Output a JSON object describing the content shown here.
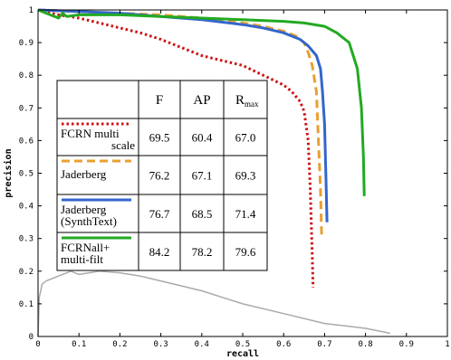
{
  "chart_data": {
    "type": "line",
    "xlabel": "recall",
    "ylabel": "precision",
    "xlim": [
      0,
      1
    ],
    "ylim": [
      0,
      1
    ],
    "xticks": [
      "0",
      "0.1",
      "0.2",
      "0.3",
      "0.4",
      "0.5",
      "0.6",
      "0.7",
      "0.8",
      "0.9",
      "1"
    ],
    "yticks": [
      "0",
      "0.1",
      "0.2",
      "0.3",
      "0.4",
      "0.5",
      "0.6",
      "0.7",
      "0.8",
      "0.9",
      "1"
    ],
    "grid": false,
    "series": [
      {
        "name": "FCRN multi scale",
        "color": "#cc1111",
        "dash": "dotted",
        "x": [
          0.0,
          0.05,
          0.1,
          0.15,
          0.2,
          0.25,
          0.3,
          0.35,
          0.4,
          0.45,
          0.5,
          0.55,
          0.6,
          0.62,
          0.64,
          0.65,
          0.66,
          0.665,
          0.67,
          0.672
        ],
        "y": [
          1.0,
          0.985,
          0.975,
          0.96,
          0.945,
          0.93,
          0.91,
          0.885,
          0.86,
          0.845,
          0.83,
          0.8,
          0.77,
          0.75,
          0.72,
          0.69,
          0.6,
          0.45,
          0.25,
          0.15
        ]
      },
      {
        "name": "Jaderberg",
        "color": "#e8a030",
        "dash": "dashed",
        "x": [
          0.0,
          0.1,
          0.2,
          0.3,
          0.4,
          0.5,
          0.55,
          0.6,
          0.63,
          0.65,
          0.66,
          0.67,
          0.68,
          0.685,
          0.69,
          0.693
        ],
        "y": [
          1.0,
          0.995,
          0.99,
          0.985,
          0.975,
          0.96,
          0.95,
          0.935,
          0.92,
          0.9,
          0.87,
          0.83,
          0.75,
          0.6,
          0.45,
          0.3
        ]
      },
      {
        "name": "Jaderberg (SynthText)",
        "color": "#3366cc",
        "dash": "solid",
        "x": [
          0.0,
          0.1,
          0.2,
          0.3,
          0.4,
          0.5,
          0.55,
          0.6,
          0.64,
          0.66,
          0.68,
          0.69,
          0.695,
          0.7,
          0.703,
          0.706
        ],
        "y": [
          1.0,
          0.995,
          0.99,
          0.98,
          0.97,
          0.955,
          0.945,
          0.93,
          0.91,
          0.89,
          0.86,
          0.82,
          0.75,
          0.65,
          0.5,
          0.35
        ]
      },
      {
        "name": "FCRNall+ multi-filt",
        "color": "#22aa22",
        "dash": "solid",
        "x": [
          0.0,
          0.05,
          0.06,
          0.07,
          0.1,
          0.2,
          0.3,
          0.4,
          0.5,
          0.6,
          0.65,
          0.7,
          0.73,
          0.76,
          0.78,
          0.79,
          0.795,
          0.797
        ],
        "y": [
          1.0,
          0.975,
          0.99,
          0.98,
          0.985,
          0.985,
          0.98,
          0.975,
          0.97,
          0.965,
          0.96,
          0.95,
          0.93,
          0.9,
          0.82,
          0.7,
          0.55,
          0.43
        ]
      },
      {
        "color": "#aaaaaa",
        "dash": "solid",
        "x": [
          0.0,
          0.003,
          0.01,
          0.02,
          0.04,
          0.06,
          0.08,
          0.1,
          0.15,
          0.2,
          0.25,
          0.3,
          0.4,
          0.5,
          0.6,
          0.7,
          0.8,
          0.86
        ],
        "y": [
          0.0,
          0.12,
          0.16,
          0.17,
          0.18,
          0.19,
          0.2,
          0.19,
          0.2,
          0.195,
          0.185,
          0.17,
          0.14,
          0.1,
          0.07,
          0.04,
          0.025,
          0.01
        ]
      }
    ],
    "table": {
      "headers": [
        "",
        "F",
        "AP",
        "R",
        "max"
      ],
      "rows": [
        {
          "label_line1": "FCRN multi",
          "label_line2": "scale",
          "values": [
            "69.5",
            "60.4",
            "67.0"
          ]
        },
        {
          "label_line1": "Jaderberg",
          "label_line2": "",
          "values": [
            "76.2",
            "67.1",
            "69.3"
          ]
        },
        {
          "label_line1": "Jaderberg",
          "label_line2": "(SynthText)",
          "values": [
            "76.7",
            "68.5",
            "71.4"
          ]
        },
        {
          "label_line1": "FCRNall+",
          "label_line2": "multi-filt",
          "values": [
            "84.2",
            "78.2",
            "79.6"
          ]
        }
      ]
    }
  }
}
